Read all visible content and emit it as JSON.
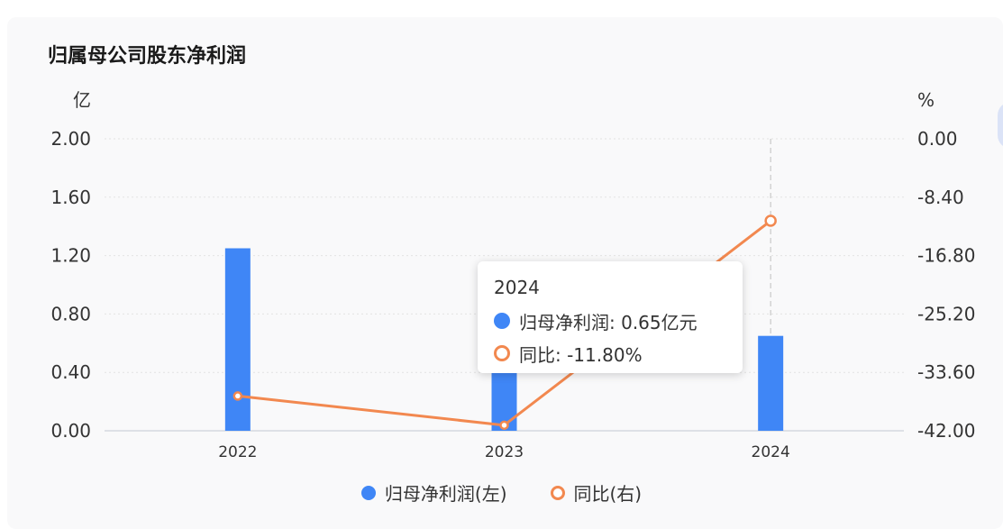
{
  "title": "归属母公司股东净利润",
  "colors": {
    "bar": "#3f86f6",
    "line": "#f2884f",
    "grid": "#e3e3e3",
    "axis_text": "#333333"
  },
  "chart_data": {
    "type": "bar",
    "categories": [
      "2022",
      "2023",
      "2024"
    ],
    "left_axis": {
      "unit": "亿",
      "ticks": [
        "2.00",
        "1.60",
        "1.20",
        "0.80",
        "0.40",
        "0.00"
      ],
      "range": [
        0,
        2.0
      ]
    },
    "right_axis": {
      "unit": "%",
      "ticks": [
        "0.00",
        "-8.40",
        "-16.80",
        "-25.20",
        "-33.60",
        "-42.00"
      ],
      "range": [
        -42.0,
        0.0
      ]
    },
    "series": [
      {
        "name": "归母净利润(左)",
        "type": "bar",
        "axis": "left",
        "values": [
          1.25,
          0.72,
          0.65
        ]
      },
      {
        "name": "同比(右)",
        "type": "line",
        "axis": "right",
        "values": [
          -37.0,
          -41.2,
          -11.8
        ]
      }
    ],
    "grid": true,
    "legend": "bottom-center",
    "highlight_category": "2024"
  },
  "tooltip": {
    "title": "2024",
    "bar_label": "归母净利润: 0.65亿元",
    "line_label": "同比: -11.80%"
  }
}
